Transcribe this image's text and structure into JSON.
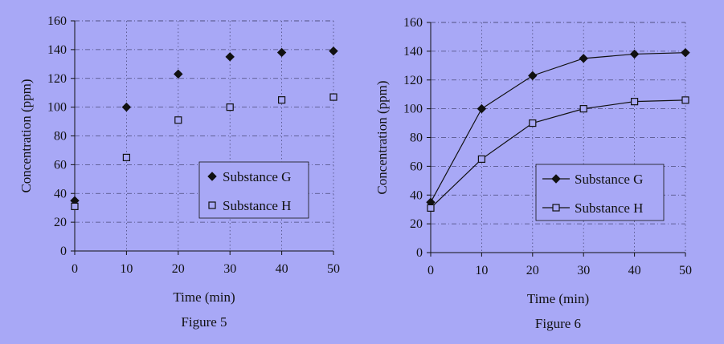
{
  "colors": {
    "background": "#a8a8f6",
    "marker": "#111111",
    "grid": "#4a4a7a"
  },
  "chart_data": [
    {
      "type": "scatter",
      "caption": "Figure 5",
      "xlabel": "Time (min)",
      "ylabel": "Concentration (ppm)",
      "xlim": [
        0,
        50
      ],
      "ylim": [
        0,
        160
      ],
      "x_ticks": [
        "0",
        "10",
        "20",
        "30",
        "40",
        "50"
      ],
      "y_ticks": [
        "0",
        "20",
        "40",
        "60",
        "80",
        "100",
        "120",
        "140",
        "160"
      ],
      "grid": true,
      "legend_position": "bottom-right",
      "series": [
        {
          "name": "Substance G",
          "marker": "filled-diamond",
          "lines": false,
          "x": [
            0,
            10,
            20,
            30,
            40,
            50
          ],
          "y": [
            35,
            100,
            123,
            135,
            138,
            139
          ]
        },
        {
          "name": "Substance H",
          "marker": "open-square",
          "lines": false,
          "x": [
            0,
            10,
            20,
            30,
            40,
            50
          ],
          "y": [
            31,
            65,
            91,
            100,
            105,
            107
          ]
        }
      ]
    },
    {
      "type": "line",
      "caption": "Figure 6",
      "xlabel": "Time (min)",
      "ylabel": "Concentration (ppm)",
      "xlim": [
        0,
        50
      ],
      "ylim": [
        0,
        160
      ],
      "x_ticks": [
        "0",
        "10",
        "20",
        "30",
        "40",
        "50"
      ],
      "y_ticks": [
        "0",
        "20",
        "40",
        "60",
        "80",
        "100",
        "120",
        "140",
        "160"
      ],
      "grid": true,
      "legend_position": "bottom-right",
      "series": [
        {
          "name": "Substance G",
          "marker": "filled-diamond",
          "lines": true,
          "x": [
            0,
            10,
            20,
            30,
            40,
            50
          ],
          "y": [
            35,
            100,
            123,
            135,
            138,
            139
          ]
        },
        {
          "name": "Substance H",
          "marker": "open-square",
          "lines": true,
          "x": [
            0,
            10,
            20,
            30,
            40,
            50
          ],
          "y": [
            31,
            65,
            90,
            100,
            105,
            106
          ]
        }
      ]
    }
  ]
}
